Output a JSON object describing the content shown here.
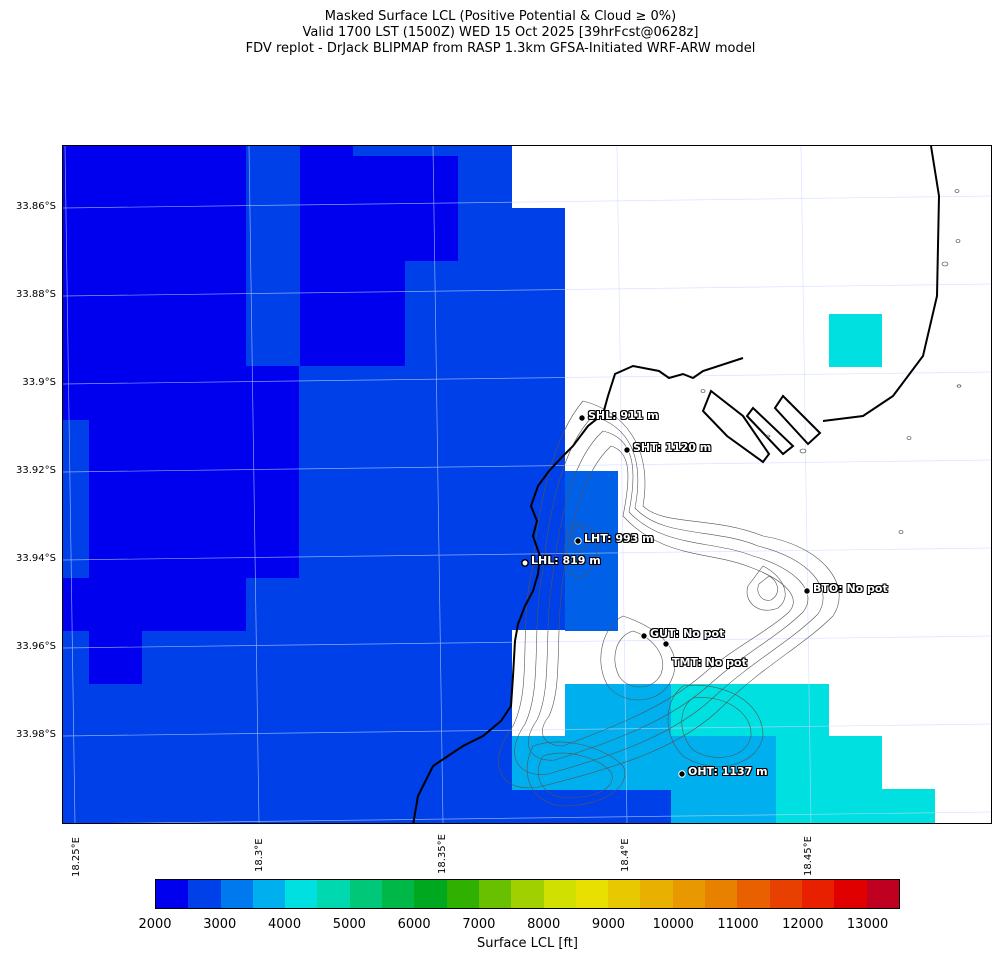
{
  "header": {
    "line1": "Masked Surface LCL (Positive Potential & Cloud ≥ 0%)",
    "line2": "Valid 1700 LST (1500Z) WED 15 Oct 2025 [39hrFcst@0628z]",
    "line3": "FDV replot - DrJack BLIPMAP from RASP 1.3km GFSA-Initiated WRF-ARW model"
  },
  "axes": {
    "lat_labels": [
      "33.86°S",
      "33.88°S",
      "33.9°S",
      "33.92°S",
      "33.94°S",
      "33.96°S",
      "33.98°S"
    ],
    "lon_labels": [
      "18.25°E",
      "18.3°E",
      "18.35°E",
      "18.4°E",
      "18.45°E"
    ]
  },
  "stations": [
    {
      "label": "SHL: 911 m"
    },
    {
      "label": "SHT: 1120 m"
    },
    {
      "label": "LHT: 993 m"
    },
    {
      "label": "LHL: 819 m"
    },
    {
      "label": "BTO: No pot"
    },
    {
      "label": "GUT: No pot"
    },
    {
      "label": "TMT: No pot"
    },
    {
      "label": "OHT: 1137 m"
    }
  ],
  "colorbar": {
    "label": "Surface LCL [ft]",
    "ticks": [
      "2000",
      "3000",
      "4000",
      "5000",
      "6000",
      "7000",
      "8000",
      "9000",
      "10000",
      "11000",
      "12000",
      "13000"
    ],
    "colors": [
      "#0000ee",
      "#0040e8",
      "#0078ee",
      "#00b0ee",
      "#00e0e0",
      "#00d8b0",
      "#00c878",
      "#00b848",
      "#00a820",
      "#30b000",
      "#68c000",
      "#a0d000",
      "#d0e000",
      "#e8e000",
      "#e8c800",
      "#e8b000",
      "#e89800",
      "#e88000",
      "#e86000",
      "#e84000",
      "#e82000",
      "#e00000",
      "#c00020"
    ]
  },
  "legend_colors": {
    "dark_blue": "#0000ee",
    "blue": "#0040e8",
    "light_blue": "#00b0ee",
    "cyan": "#00e0e0"
  }
}
